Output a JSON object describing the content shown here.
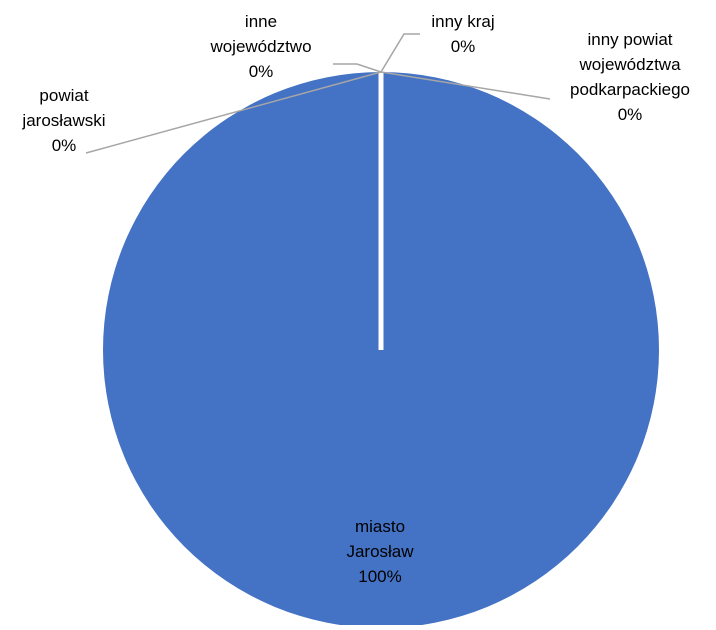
{
  "chart_data": {
    "type": "pie",
    "categories": [
      "miasto Jarosław",
      "powiat jarosławski",
      "inne województwo",
      "inny kraj",
      "inny powiat województwa podkarpackiego"
    ],
    "values": [
      100,
      0,
      0,
      0,
      0
    ],
    "labels": [
      {
        "lines": [
          "miasto",
          "Jarosław"
        ],
        "pct": "100%"
      },
      {
        "lines": [
          "powiat",
          "jarosławski"
        ],
        "pct": "0%"
      },
      {
        "lines": [
          "inne",
          "województwo"
        ],
        "pct": "0%"
      },
      {
        "lines": [
          "inny kraj"
        ],
        "pct": "0%"
      },
      {
        "lines": [
          "inny powiat",
          "województwa",
          "podkarpackiego"
        ],
        "pct": "0%"
      }
    ],
    "colors": [
      "#4472C4",
      "#ED7D31",
      "#A5A5A5",
      "#FFC000",
      "#5B9BD5"
    ],
    "leader_line_color": "#A6A6A6"
  }
}
